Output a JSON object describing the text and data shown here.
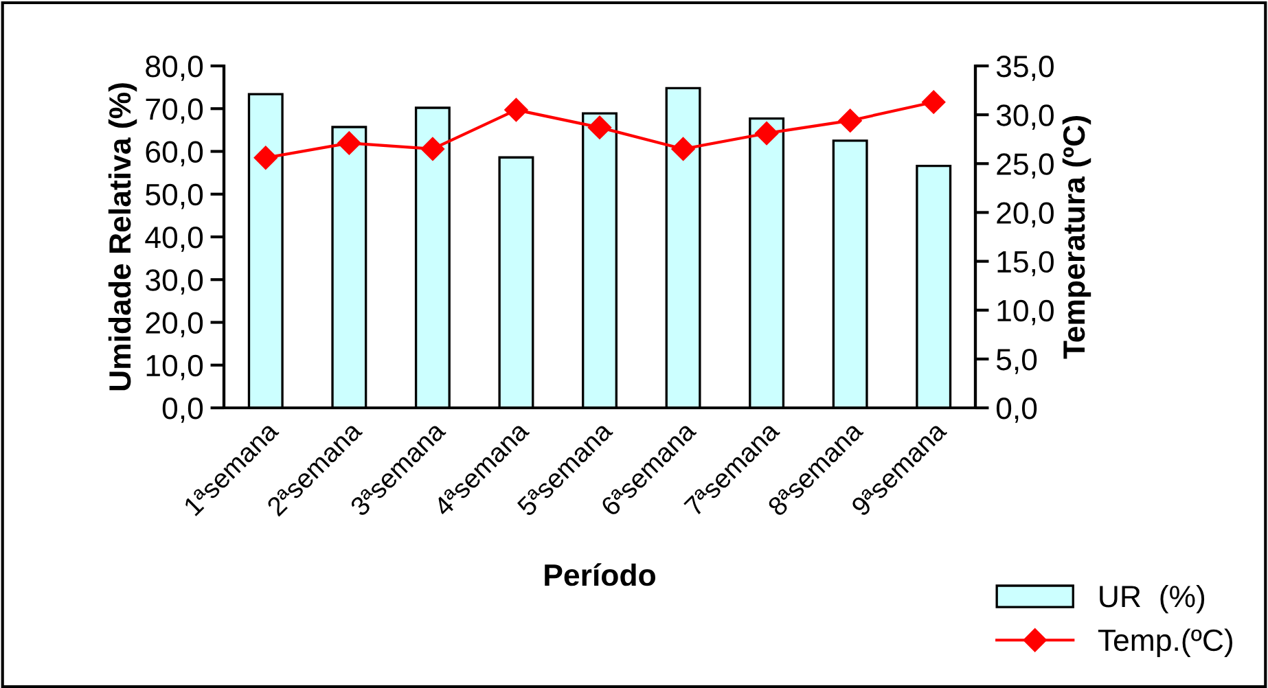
{
  "chart_data": {
    "type": "bar",
    "xlabel": "Período",
    "ylabel": "Umidade Relativa (%)",
    "y2label": "Temperatura (ºC)",
    "categories": [
      "1ªsemana",
      "2ªsemana",
      "3ªsemana",
      "4ªsemana",
      "5ªsemana",
      "6ªsemana",
      "7ªsemana",
      "8ªsemana",
      "9ªsemana"
    ],
    "series": [
      {
        "name": "UR  (%)",
        "color": "#ccffff",
        "values": [
          73.4,
          65.7,
          70.2,
          58.6,
          68.9,
          74.8,
          67.7,
          62.5,
          56.6
        ]
      },
      {
        "name": "Temp.(ºC)",
        "type": "line",
        "axis": "y2",
        "color": "#ff0000",
        "marker": "diamond",
        "values": [
          25.6,
          27.1,
          26.5,
          30.5,
          28.7,
          26.5,
          28.1,
          29.4,
          31.3
        ]
      }
    ],
    "ylim": [
      0,
      80
    ],
    "yticks": [
      {
        "value": 0,
        "label": "0,0"
      },
      {
        "value": 10,
        "label": "10,0"
      },
      {
        "value": 20,
        "label": "20,0"
      },
      {
        "value": 30,
        "label": "30,0"
      },
      {
        "value": 40,
        "label": "40,0"
      },
      {
        "value": 50,
        "label": "50,0"
      },
      {
        "value": 60,
        "label": "60,0"
      },
      {
        "value": 70,
        "label": "70,0"
      },
      {
        "value": 80,
        "label": "80,0"
      }
    ],
    "y2lim": [
      0,
      35
    ],
    "y2ticks": [
      {
        "value": 0,
        "label": "0,0"
      },
      {
        "value": 5,
        "label": "5,0"
      },
      {
        "value": 10,
        "label": "10,0"
      },
      {
        "value": 15,
        "label": "15,0"
      },
      {
        "value": 20,
        "label": "20,0"
      },
      {
        "value": 25,
        "label": "25,0"
      },
      {
        "value": 30,
        "label": "30,0"
      },
      {
        "value": 35,
        "label": "35,0"
      }
    ],
    "grid": false,
    "legend": "bottom right"
  }
}
